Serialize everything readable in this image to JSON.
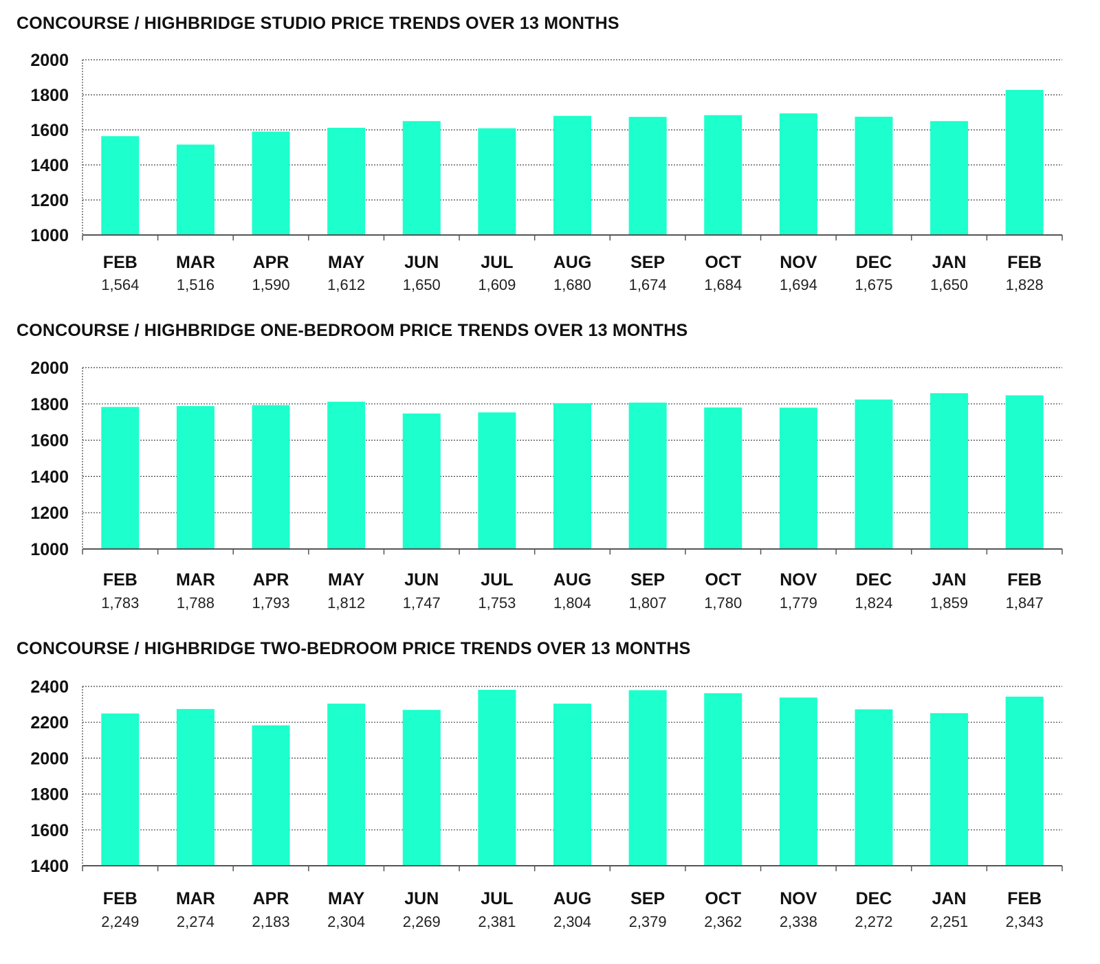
{
  "colors": {
    "bar": "#1dffcc",
    "grid": "#444444",
    "axis": "#555555",
    "text": "#111111"
  },
  "chart_data": [
    {
      "type": "bar",
      "title": "CONCOURSE / HIGHBRIDGE STUDIO PRICE TRENDS OVER 13 MONTHS",
      "categories": [
        "FEB",
        "MAR",
        "APR",
        "MAY",
        "JUN",
        "JUL",
        "AUG",
        "SEP",
        "OCT",
        "NOV",
        "DEC",
        "JAN",
        "FEB"
      ],
      "values": [
        1564,
        1516,
        1590,
        1612,
        1650,
        1609,
        1680,
        1674,
        1684,
        1694,
        1675,
        1650,
        1828
      ],
      "value_labels": [
        "1,564",
        "1,516",
        "1,590",
        "1,612",
        "1,650",
        "1,609",
        "1,680",
        "1,674",
        "1,684",
        "1,694",
        "1,675",
        "1,650",
        "1,828"
      ],
      "yticks": [
        2000,
        1800,
        1600,
        1400,
        1200,
        1000
      ],
      "ylim": [
        1000,
        2000
      ],
      "xlabel": "",
      "ylabel": "",
      "grid": true
    },
    {
      "type": "bar",
      "title": "CONCOURSE / HIGHBRIDGE ONE-BEDROOM PRICE TRENDS OVER 13 MONTHS",
      "categories": [
        "FEB",
        "MAR",
        "APR",
        "MAY",
        "JUN",
        "JUL",
        "AUG",
        "SEP",
        "OCT",
        "NOV",
        "DEC",
        "JAN",
        "FEB"
      ],
      "values": [
        1783,
        1788,
        1793,
        1812,
        1747,
        1753,
        1804,
        1807,
        1780,
        1779,
        1824,
        1859,
        1847
      ],
      "value_labels": [
        "1,783",
        "1,788",
        "1,793",
        "1,812",
        "1,747",
        "1,753",
        "1,804",
        "1,807",
        "1,780",
        "1,779",
        "1,824",
        "1,859",
        "1,847"
      ],
      "yticks": [
        2000,
        1800,
        1600,
        1400,
        1200,
        1000
      ],
      "ylim": [
        1000,
        2000
      ],
      "xlabel": "",
      "ylabel": "",
      "grid": true
    },
    {
      "type": "bar",
      "title": "CONCOURSE / HIGHBRIDGE TWO-BEDROOM PRICE TRENDS OVER 13 MONTHS",
      "categories": [
        "FEB",
        "MAR",
        "APR",
        "MAY",
        "JUN",
        "JUL",
        "AUG",
        "SEP",
        "OCT",
        "NOV",
        "DEC",
        "JAN",
        "FEB"
      ],
      "values": [
        2249,
        2274,
        2183,
        2304,
        2269,
        2381,
        2304,
        2379,
        2362,
        2338,
        2272,
        2251,
        2343
      ],
      "value_labels": [
        "2,249",
        "2,274",
        "2,183",
        "2,304",
        "2,269",
        "2,381",
        "2,304",
        "2,379",
        "2,362",
        "2,338",
        "2,272",
        "2,251",
        "2,343"
      ],
      "yticks": [
        2400,
        2200,
        2000,
        1800,
        1600,
        1400
      ],
      "ylim": [
        1400,
        2400
      ],
      "xlabel": "",
      "ylabel": "",
      "grid": true
    }
  ]
}
